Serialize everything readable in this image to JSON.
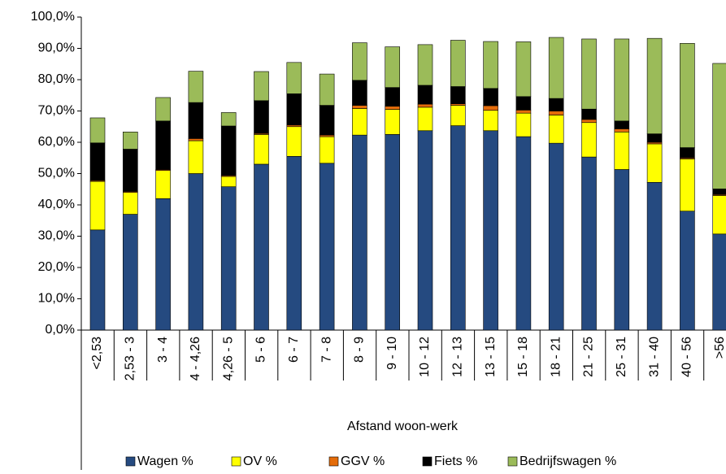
{
  "chart_data": {
    "type": "stacked_bar",
    "x_label": "Afstand woon-werk",
    "categories": [
      "<2,53",
      "2,53 - 3",
      "3 - 4",
      "4 - 4,26",
      "4,26 - 5",
      "5 - 6",
      "6 - 7",
      "7 - 8",
      "8 - 9",
      "9 - 10",
      "10 - 12",
      "12 - 13",
      "13 - 15",
      "15 - 18",
      "18 - 21",
      "21 - 25",
      "25 - 31",
      "31 - 40",
      "40 - 56",
      ">56"
    ],
    "series": [
      {
        "name": "Wagen %",
        "color": "#254a80",
        "values": [
          32,
          37,
          42,
          50,
          45.8,
          53,
          55.5,
          53.3,
          62.3,
          62.5,
          63.7,
          65.3,
          63.7,
          61.8,
          59.7,
          55.3,
          51.3,
          47.2,
          38,
          30.7
        ]
      },
      {
        "name": "OV %",
        "color": "#ffff00",
        "values": [
          15.5,
          7,
          9,
          10.5,
          3.3,
          9.5,
          9.5,
          8.5,
          8.5,
          8,
          7.5,
          6.5,
          6.5,
          7.5,
          9,
          11,
          12,
          12.3,
          16.7,
          12.3
        ]
      },
      {
        "name": "GGV %",
        "color": "#e46c0a",
        "values": [
          0.3,
          0.3,
          0.3,
          0.7,
          0.3,
          0.3,
          0.5,
          0.5,
          1,
          1,
          1,
          0.5,
          1.5,
          1,
          1.3,
          1,
          1,
          0.5,
          0.3,
          0.3
        ]
      },
      {
        "name": "Fiets %",
        "color": "#000000",
        "values": [
          12,
          13.5,
          15.5,
          11.5,
          15.8,
          10.5,
          10,
          9.5,
          8,
          6,
          6,
          5.5,
          5.5,
          4.3,
          4,
          3.3,
          2.5,
          2.7,
          3.3,
          1.8
        ]
      },
      {
        "name": "Bedrijfswagen %",
        "color": "#9bbb59",
        "values": [
          8,
          5.5,
          7.5,
          10,
          4.3,
          9.3,
          10,
          10,
          12,
          13,
          13,
          14.8,
          15,
          17.5,
          19.5,
          22.4,
          26.2,
          30.5,
          33.3,
          40.1
        ]
      }
    ],
    "ylim": [
      0,
      100
    ],
    "yticks": [
      {
        "value": 0,
        "label": "0,0%"
      },
      {
        "value": 10,
        "label": "10,0%"
      },
      {
        "value": 20,
        "label": "20,0%"
      },
      {
        "value": 30,
        "label": "30,0%"
      },
      {
        "value": 40,
        "label": "40,0%"
      },
      {
        "value": 50,
        "label": "50,0%"
      },
      {
        "value": 60,
        "label": "60,0%"
      },
      {
        "value": 70,
        "label": "70,0%"
      },
      {
        "value": 80,
        "label": "80,0%"
      },
      {
        "value": 90,
        "label": "90,0%"
      },
      {
        "value": 100,
        "label": "100,0%"
      }
    ],
    "legend": "bottom",
    "grid": false
  }
}
